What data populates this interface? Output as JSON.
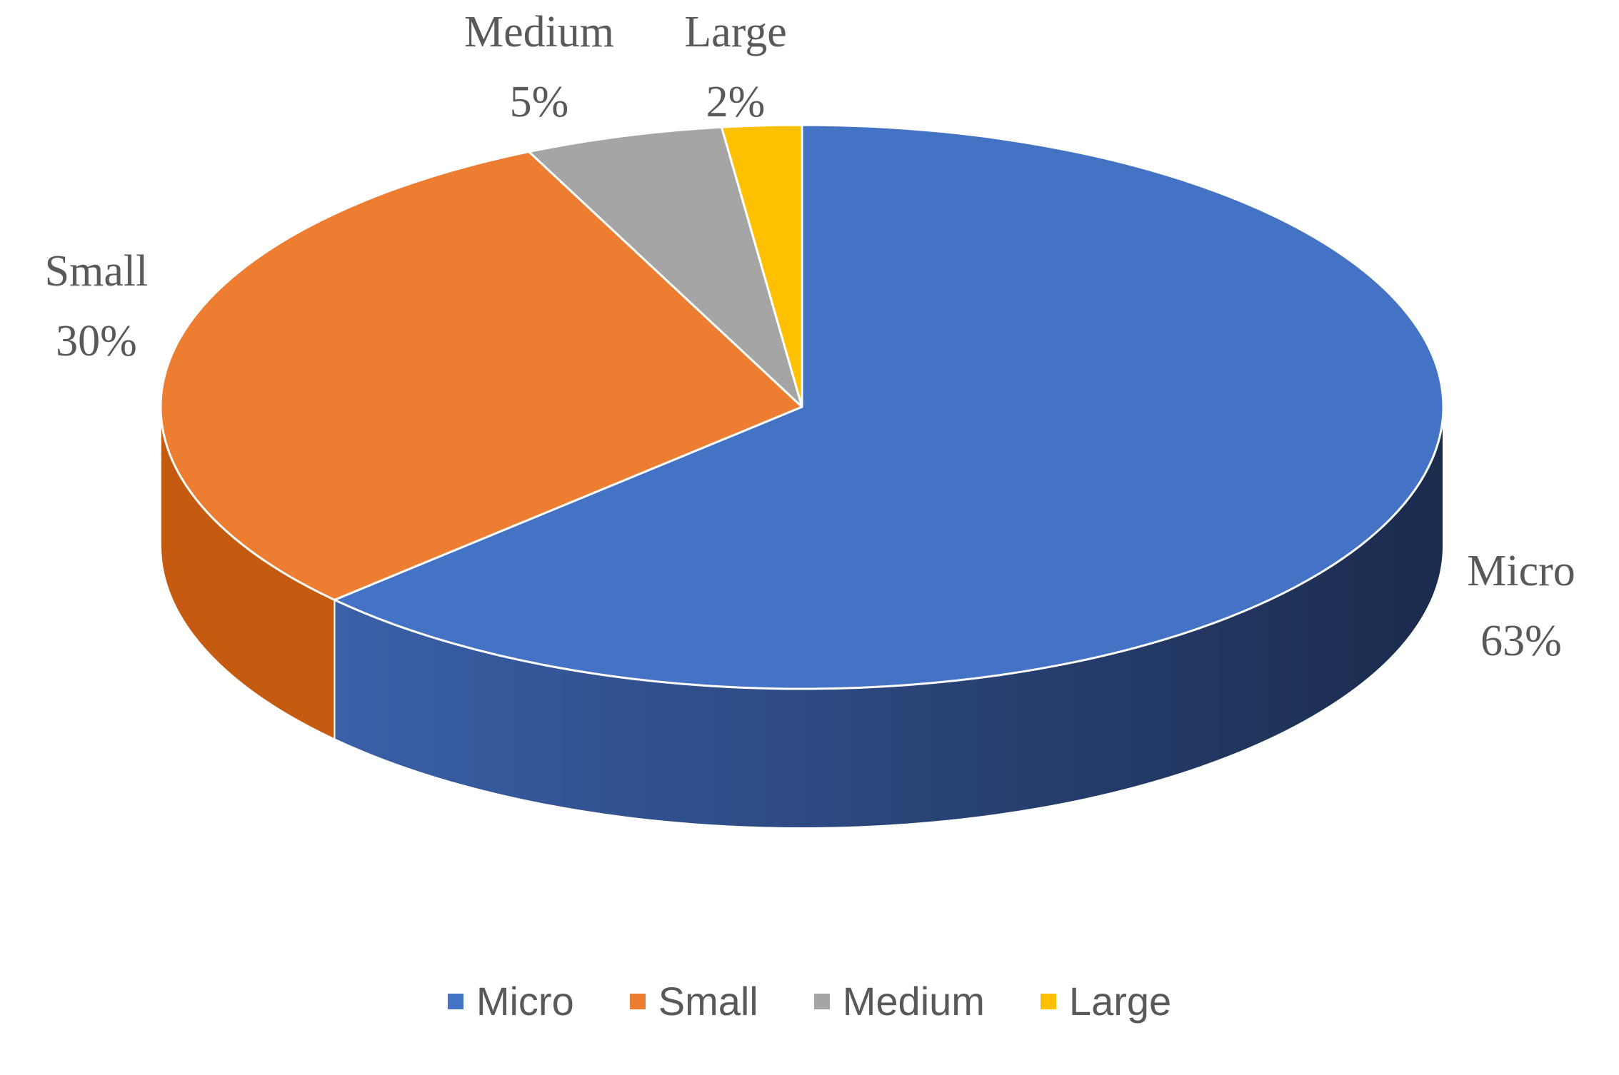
{
  "chart_data": {
    "type": "pie",
    "style": "3d",
    "categories": [
      "Micro",
      "Small",
      "Medium",
      "Large"
    ],
    "values": [
      63,
      30,
      5,
      2
    ],
    "data_labels": [
      "63%",
      "30%",
      "5%",
      "2%"
    ],
    "colors": [
      "#4472C4",
      "#ED7D31",
      "#A5A5A5",
      "#FFC000"
    ],
    "side_colors": [
      "#2F5597",
      "#C55A11",
      "#7B7B7B",
      "#BF9000"
    ],
    "legend_position": "bottom",
    "title": ""
  }
}
